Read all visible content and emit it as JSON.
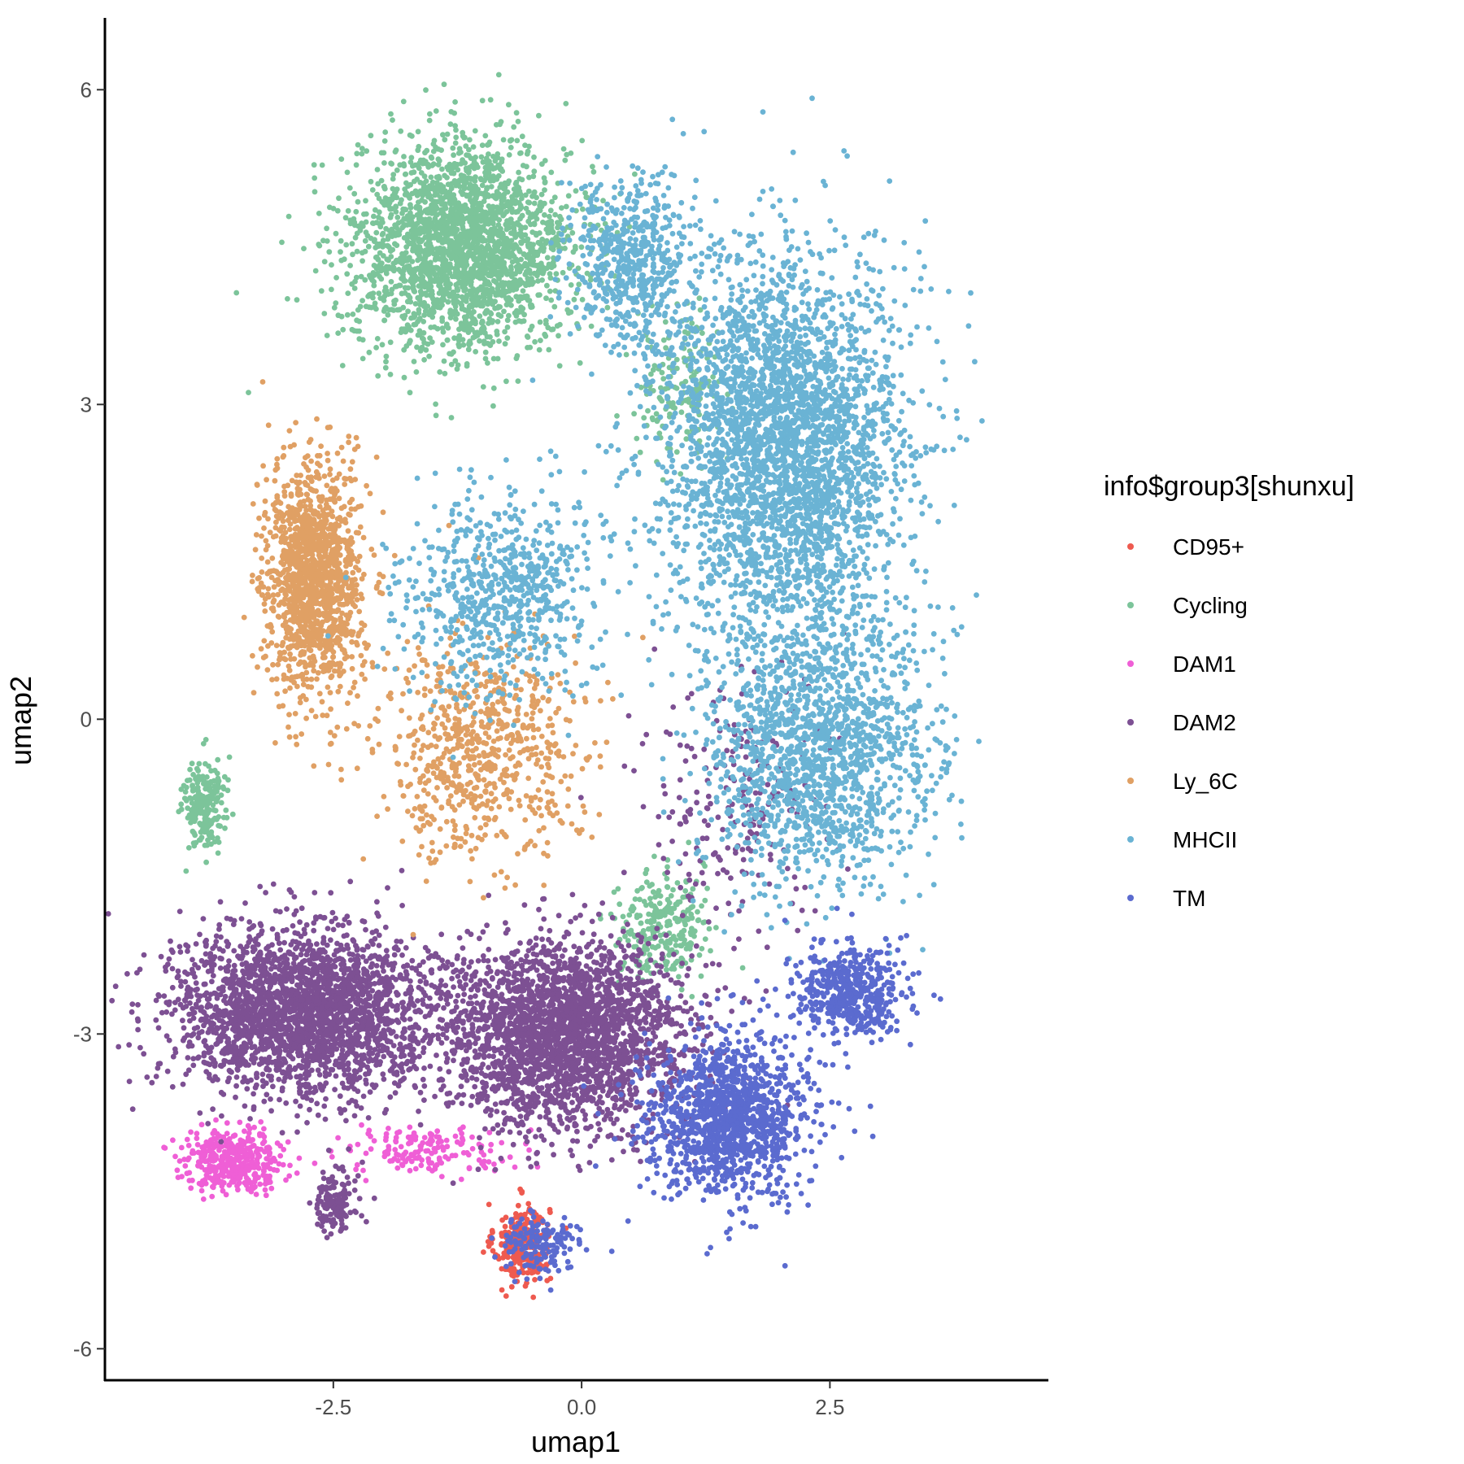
{
  "chart_data": {
    "type": "scatter",
    "xlabel": "umap1",
    "ylabel": "umap2",
    "xlim": [
      -4.8,
      4.7
    ],
    "ylim": [
      -6.3,
      6.7
    ],
    "x_ticks": [
      -2.5,
      0.0,
      2.5
    ],
    "x_tick_labels": [
      "-2.5",
      "0.0",
      "2.5"
    ],
    "y_ticks": [
      -6,
      -3,
      0,
      3,
      6
    ],
    "y_tick_labels": [
      "-6",
      "-3",
      "0",
      "3",
      "6"
    ],
    "grid": false,
    "legend": {
      "title": "info$group3[shunxu]",
      "placement": "right"
    },
    "series": [
      {
        "name": "CD95+",
        "color": "#ee5a4f",
        "clusters": [
          {
            "center": [
              -0.6,
              -5.0
            ],
            "spread": [
              0.25,
              0.35
            ],
            "n": 260
          }
        ]
      },
      {
        "name": "Cycling",
        "color": "#7cc49a",
        "clusters": [
          {
            "center": [
              -1.2,
              4.5
            ],
            "spread": [
              1.0,
              0.9
            ],
            "n": 2400
          },
          {
            "center": [
              -3.8,
              -0.8
            ],
            "spread": [
              0.2,
              0.4
            ],
            "n": 200
          },
          {
            "center": [
              0.8,
              -2.0
            ],
            "spread": [
              0.4,
              0.5
            ],
            "n": 280
          },
          {
            "center": [
              1.0,
              3.2
            ],
            "spread": [
              0.4,
              0.6
            ],
            "n": 160
          }
        ]
      },
      {
        "name": "DAM1",
        "color": "#ef5fd6",
        "clusters": [
          {
            "center": [
              -3.5,
              -4.2
            ],
            "spread": [
              0.45,
              0.25
            ],
            "n": 420
          },
          {
            "center": [
              -1.5,
              -4.1
            ],
            "spread": [
              0.8,
              0.2
            ],
            "n": 160
          }
        ]
      },
      {
        "name": "DAM2",
        "color": "#7d5093",
        "clusters": [
          {
            "center": [
              -2.8,
              -2.8
            ],
            "spread": [
              1.2,
              0.7
            ],
            "n": 2600
          },
          {
            "center": [
              -0.2,
              -3.0
            ],
            "spread": [
              1.1,
              0.8
            ],
            "n": 2600
          },
          {
            "center": [
              -2.5,
              -4.6
            ],
            "spread": [
              0.2,
              0.3
            ],
            "n": 140
          },
          {
            "center": [
              1.5,
              -0.8
            ],
            "spread": [
              0.9,
              1.2
            ],
            "n": 220
          }
        ]
      },
      {
        "name": "Ly_6C",
        "color": "#e0a064",
        "clusters": [
          {
            "center": [
              -2.7,
              1.3
            ],
            "spread": [
              0.45,
              1.0
            ],
            "n": 1400
          },
          {
            "center": [
              -1.0,
              -0.3
            ],
            "spread": [
              0.9,
              1.0
            ],
            "n": 700
          }
        ]
      },
      {
        "name": "MHCII",
        "color": "#6ab3d4",
        "clusters": [
          {
            "center": [
              2.0,
              2.6
            ],
            "spread": [
              1.1,
              1.6
            ],
            "n": 3200
          },
          {
            "center": [
              2.4,
              -0.3
            ],
            "spread": [
              1.0,
              1.2
            ],
            "n": 1600
          },
          {
            "center": [
              0.5,
              4.3
            ],
            "spread": [
              0.6,
              0.8
            ],
            "n": 600
          },
          {
            "center": [
              -0.8,
              1.2
            ],
            "spread": [
              0.9,
              0.9
            ],
            "n": 700
          }
        ]
      },
      {
        "name": "TM",
        "color": "#5b6bcf",
        "clusters": [
          {
            "center": [
              1.5,
              -3.8
            ],
            "spread": [
              0.7,
              0.7
            ],
            "n": 1300
          },
          {
            "center": [
              2.7,
              -2.6
            ],
            "spread": [
              0.5,
              0.4
            ],
            "n": 500
          },
          {
            "center": [
              -0.4,
              -5.0
            ],
            "spread": [
              0.35,
              0.25
            ],
            "n": 160
          }
        ]
      }
    ]
  }
}
